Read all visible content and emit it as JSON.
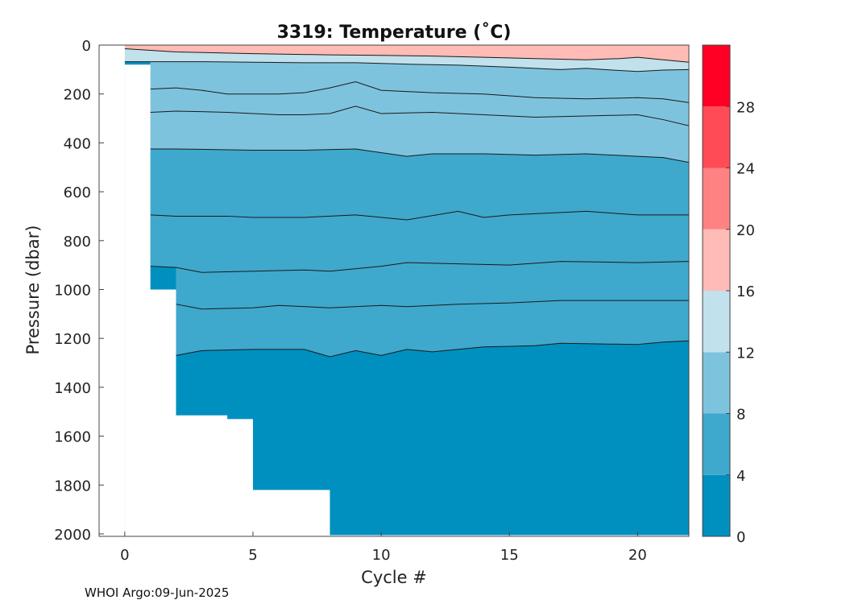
{
  "footer": "WHOI Argo:09-Jun-2025",
  "chart_data": {
    "type": "heatmap",
    "title": "3319:  Temperature (˚C)",
    "xlabel": "Cycle #",
    "ylabel": "Pressure (dbar)",
    "xlim": [
      -1,
      22
    ],
    "ylim": [
      2010,
      0
    ],
    "y_reversed": true,
    "x_ticks": [
      0,
      5,
      10,
      15,
      20
    ],
    "y_ticks": [
      0,
      200,
      400,
      600,
      800,
      1000,
      1200,
      1400,
      1600,
      1800,
      2000
    ],
    "colorbar": {
      "range": [
        0,
        32
      ],
      "ticks": [
        0,
        4,
        8,
        12,
        16,
        20,
        24,
        28
      ],
      "levels": [
        {
          "min": 0,
          "max": 4,
          "color": "#0090c0"
        },
        {
          "min": 4,
          "max": 8,
          "color": "#3fa8cd"
        },
        {
          "min": 8,
          "max": 12,
          "color": "#7ec3dd"
        },
        {
          "min": 12,
          "max": 16,
          "color": "#c1e1ec"
        },
        {
          "min": 16,
          "max": 20,
          "color": "#ffbbb5"
        },
        {
          "min": 20,
          "max": 24,
          "color": "#ff8282"
        },
        {
          "min": 24,
          "max": 28,
          "color": "#ff4b55"
        },
        {
          "min": 28,
          "max": 32,
          "color": "#ff0024"
        }
      ]
    },
    "max_depth": [
      {
        "cycle": 0,
        "pressure": 80
      },
      {
        "cycle": 1,
        "pressure": 1000
      },
      {
        "cycle": 2,
        "pressure": 1515
      },
      {
        "cycle": 4,
        "pressure": 1530
      },
      {
        "cycle": 5,
        "pressure": 1820
      },
      {
        "cycle": 8,
        "pressure": 2005
      },
      {
        "cycle": 22,
        "pressure": 2005
      }
    ],
    "isotherms": [
      {
        "temp": 4,
        "points": [
          [
            2,
            1270
          ],
          [
            3,
            1250
          ],
          [
            5,
            1245
          ],
          [
            7,
            1245
          ],
          [
            8,
            1275
          ],
          [
            9,
            1250
          ],
          [
            10,
            1270
          ],
          [
            11,
            1245
          ],
          [
            12,
            1255
          ],
          [
            14,
            1235
          ],
          [
            16,
            1230
          ],
          [
            17,
            1220
          ],
          [
            20,
            1225
          ],
          [
            21,
            1215
          ],
          [
            22,
            1210
          ]
        ]
      },
      {
        "temp": 5,
        "points": [
          [
            2,
            1060
          ],
          [
            3,
            1080
          ],
          [
            5,
            1075
          ],
          [
            6,
            1065
          ],
          [
            8,
            1075
          ],
          [
            10,
            1065
          ],
          [
            11,
            1070
          ],
          [
            13,
            1060
          ],
          [
            15,
            1055
          ],
          [
            17,
            1045
          ],
          [
            20,
            1045
          ],
          [
            22,
            1045
          ]
        ]
      },
      {
        "temp": 6,
        "points": [
          [
            1,
            905
          ],
          [
            2,
            910
          ],
          [
            3,
            930
          ],
          [
            5,
            925
          ],
          [
            7,
            920
          ],
          [
            8,
            925
          ],
          [
            10,
            905
          ],
          [
            11,
            890
          ],
          [
            13,
            895
          ],
          [
            15,
            900
          ],
          [
            17,
            885
          ],
          [
            20,
            890
          ],
          [
            22,
            885
          ]
        ]
      },
      {
        "temp": 7,
        "points": [
          [
            1,
            695
          ],
          [
            2,
            700
          ],
          [
            4,
            700
          ],
          [
            5,
            705
          ],
          [
            7,
            705
          ],
          [
            9,
            695
          ],
          [
            11,
            715
          ],
          [
            13,
            680
          ],
          [
            14,
            705
          ],
          [
            15,
            695
          ],
          [
            18,
            680
          ],
          [
            20,
            695
          ],
          [
            22,
            695
          ]
        ]
      },
      {
        "temp": 8,
        "points": [
          [
            1,
            425
          ],
          [
            2,
            425
          ],
          [
            5,
            430
          ],
          [
            7,
            430
          ],
          [
            9,
            425
          ],
          [
            11,
            455
          ],
          [
            12,
            445
          ],
          [
            14,
            445
          ],
          [
            16,
            450
          ],
          [
            18,
            445
          ],
          [
            20,
            455
          ],
          [
            21,
            460
          ],
          [
            22,
            480
          ]
        ]
      },
      {
        "temp": 9,
        "points": [
          [
            1,
            275
          ],
          [
            2,
            270
          ],
          [
            4,
            275
          ],
          [
            6,
            285
          ],
          [
            7,
            285
          ],
          [
            8,
            280
          ],
          [
            9,
            250
          ],
          [
            10,
            280
          ],
          [
            12,
            275
          ],
          [
            14,
            285
          ],
          [
            15,
            290
          ],
          [
            16,
            295
          ],
          [
            18,
            290
          ],
          [
            20,
            285
          ],
          [
            21,
            305
          ],
          [
            22,
            330
          ]
        ]
      },
      {
        "temp": 10,
        "points": [
          [
            1,
            180
          ],
          [
            2,
            175
          ],
          [
            3,
            185
          ],
          [
            4,
            200
          ],
          [
            6,
            200
          ],
          [
            7,
            195
          ],
          [
            8,
            175
          ],
          [
            9,
            150
          ],
          [
            10,
            185
          ],
          [
            12,
            195
          ],
          [
            14,
            200
          ],
          [
            16,
            215
          ],
          [
            18,
            220
          ],
          [
            20,
            215
          ],
          [
            21,
            220
          ],
          [
            22,
            235
          ]
        ]
      },
      {
        "temp": 12,
        "points": [
          [
            0,
            68
          ],
          [
            1,
            68
          ],
          [
            3,
            68
          ],
          [
            5,
            70
          ],
          [
            7,
            72
          ],
          [
            9,
            72
          ],
          [
            11,
            78
          ],
          [
            13,
            82
          ],
          [
            15,
            90
          ],
          [
            17,
            100
          ],
          [
            18,
            95
          ],
          [
            19,
            102
          ],
          [
            20,
            108
          ],
          [
            21,
            102
          ],
          [
            22,
            100
          ]
        ]
      },
      {
        "temp": 16,
        "points": [
          [
            0,
            15
          ],
          [
            2,
            28
          ],
          [
            5,
            35
          ],
          [
            8,
            40
          ],
          [
            10,
            42
          ],
          [
            12,
            45
          ],
          [
            14,
            50
          ],
          [
            16,
            55
          ],
          [
            18,
            60
          ],
          [
            19.3,
            55
          ],
          [
            20,
            50
          ],
          [
            21,
            60
          ],
          [
            22,
            70
          ]
        ]
      }
    ]
  }
}
